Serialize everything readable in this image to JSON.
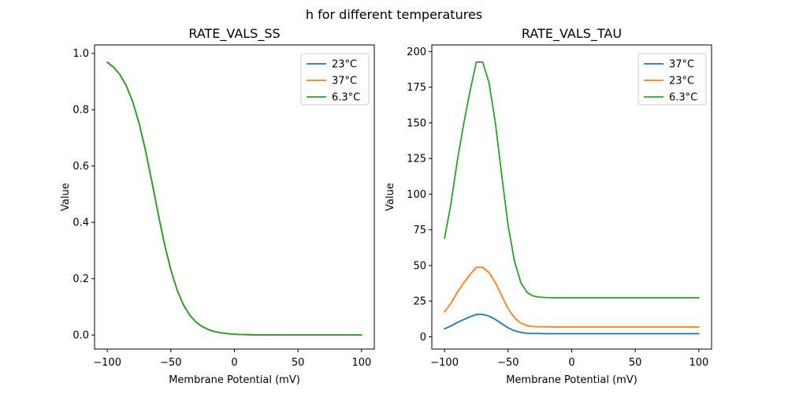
{
  "figure": {
    "title": "h for different temperatures",
    "background": "#ffffff",
    "text_color": "#000000"
  },
  "chart_data": [
    {
      "type": "line",
      "title": "RATE_VALS_SS",
      "xlabel": "Membrane Potential (mV)",
      "ylabel": "Value",
      "xlim": [
        -110,
        110
      ],
      "ylim": [
        -0.05,
        1.03
      ],
      "xticks": [
        -100,
        -50,
        0,
        50,
        100
      ],
      "xtick_labels": [
        "−100",
        "−50",
        "0",
        "50",
        "100"
      ],
      "yticks": [
        0.0,
        0.2,
        0.4,
        0.6,
        0.8,
        1.0
      ],
      "ytick_labels": [
        "0.0",
        "0.2",
        "0.4",
        "0.6",
        "0.8",
        "1.0"
      ],
      "grid": false,
      "legend_position": "upper right",
      "x": [
        -100,
        -95,
        -90,
        -85,
        -80,
        -75,
        -70,
        -65,
        -60,
        -55,
        -50,
        -45,
        -40,
        -35,
        -30,
        -25,
        -20,
        -15,
        -10,
        -5,
        0,
        5,
        10,
        15,
        20,
        25,
        30,
        35,
        40,
        45,
        50,
        55,
        60,
        65,
        70,
        75,
        80,
        85,
        90,
        95,
        100
      ],
      "series": [
        {
          "name": "23°C",
          "color": "#1f77b4",
          "values": [
            0.9685,
            0.9509,
            0.9241,
            0.8846,
            0.8283,
            0.7523,
            0.6566,
            0.5461,
            0.431,
            0.3229,
            0.2308,
            0.1589,
            0.1063,
            0.0696,
            0.045,
            0.0288,
            0.0183,
            0.0116,
            0.0073,
            0.0046,
            0.0029,
            0.0018,
            0.0012,
            0.0007,
            0.0005,
            0.0003,
            0.0002,
            0.0001,
            0.0001,
            0.0001,
            0,
            0,
            0,
            0,
            0,
            0,
            0,
            0,
            0,
            0,
            0
          ]
        },
        {
          "name": "37°C",
          "color": "#ff7f0e",
          "values": [
            0.9685,
            0.9509,
            0.9241,
            0.8846,
            0.8283,
            0.7523,
            0.6566,
            0.5461,
            0.431,
            0.3229,
            0.2308,
            0.1589,
            0.1063,
            0.0696,
            0.045,
            0.0288,
            0.0183,
            0.0116,
            0.0073,
            0.0046,
            0.0029,
            0.0018,
            0.0012,
            0.0007,
            0.0005,
            0.0003,
            0.0002,
            0.0001,
            0.0001,
            0.0001,
            0,
            0,
            0,
            0,
            0,
            0,
            0,
            0,
            0,
            0,
            0
          ]
        },
        {
          "name": "6.3°C",
          "color": "#2ca02c",
          "values": [
            0.9685,
            0.9509,
            0.9241,
            0.8846,
            0.8283,
            0.7523,
            0.6566,
            0.5461,
            0.431,
            0.3229,
            0.2308,
            0.1589,
            0.1063,
            0.0696,
            0.045,
            0.0288,
            0.0183,
            0.0116,
            0.0073,
            0.0046,
            0.0029,
            0.0018,
            0.0012,
            0.0007,
            0.0005,
            0.0003,
            0.0002,
            0.0001,
            0.0001,
            0.0001,
            0,
            0,
            0,
            0,
            0,
            0,
            0,
            0,
            0,
            0,
            0
          ]
        }
      ]
    },
    {
      "type": "line",
      "title": "RATE_VALS_TAU",
      "xlabel": "Membrane Potential (mV)",
      "ylabel": "Value",
      "xlim": [
        -110,
        110
      ],
      "ylim": [
        -8.6,
        204.6
      ],
      "xticks": [
        -100,
        -50,
        0,
        50,
        100
      ],
      "xtick_labels": [
        "−100",
        "−50",
        "0",
        "50",
        "100"
      ],
      "yticks": [
        0,
        25,
        50,
        75,
        100,
        125,
        150,
        175,
        200
      ],
      "ytick_labels": [
        "0",
        "25",
        "50",
        "75",
        "100",
        "125",
        "150",
        "175",
        "200"
      ],
      "grid": false,
      "legend_position": "upper right",
      "x": [
        -100,
        -95,
        -90,
        -85,
        -80,
        -75,
        -70,
        -65,
        -60,
        -55,
        -50,
        -45,
        -40,
        -35,
        -30,
        -25,
        -20,
        -15,
        -10,
        -5,
        0,
        5,
        10,
        15,
        20,
        25,
        30,
        35,
        40,
        45,
        50,
        55,
        60,
        65,
        70,
        75,
        80,
        85,
        90,
        95,
        100
      ],
      "series": [
        {
          "name": "37°C",
          "color": "#1f77b4",
          "values": [
            5.6,
            7.6,
            10,
            12.1,
            14,
            15.7,
            15.7,
            14.5,
            12.2,
            9.2,
            6.3,
            4.3,
            3.1,
            2.5,
            2.3,
            2.3,
            2.2,
            2.2,
            2.2,
            2.2,
            2.2,
            2.2,
            2.2,
            2.2,
            2.2,
            2.2,
            2.2,
            2.2,
            2.2,
            2.2,
            2.2,
            2.2,
            2.2,
            2.2,
            2.2,
            2.2,
            2.2,
            2.2,
            2.2,
            2.2,
            2.2
          ]
        },
        {
          "name": "23°C",
          "color": "#ff7f0e",
          "values": [
            17.5,
            23.5,
            31.1,
            37.7,
            43.5,
            48.7,
            48.7,
            45.1,
            38,
            28.6,
            19.7,
            13.4,
            9.6,
            7.8,
            7.2,
            7,
            7,
            6.9,
            6.9,
            6.9,
            6.9,
            6.9,
            6.9,
            6.9,
            6.9,
            6.9,
            6.9,
            6.9,
            6.9,
            6.9,
            6.9,
            6.9,
            6.9,
            6.9,
            6.9,
            6.9,
            6.9,
            6.9,
            6.9,
            6.9,
            6.9
          ]
        },
        {
          "name": "6.3°C",
          "color": "#2ca02c",
          "values": [
            69,
            93,
            123,
            149,
            172,
            192.5,
            192.5,
            178,
            150,
            113,
            78,
            53,
            38,
            31,
            28.5,
            27.8,
            27.5,
            27.4,
            27.4,
            27.4,
            27.4,
            27.4,
            27.4,
            27.4,
            27.4,
            27.4,
            27.4,
            27.4,
            27.4,
            27.4,
            27.4,
            27.4,
            27.4,
            27.4,
            27.4,
            27.4,
            27.4,
            27.4,
            27.4,
            27.4,
            27.4
          ]
        }
      ]
    }
  ]
}
